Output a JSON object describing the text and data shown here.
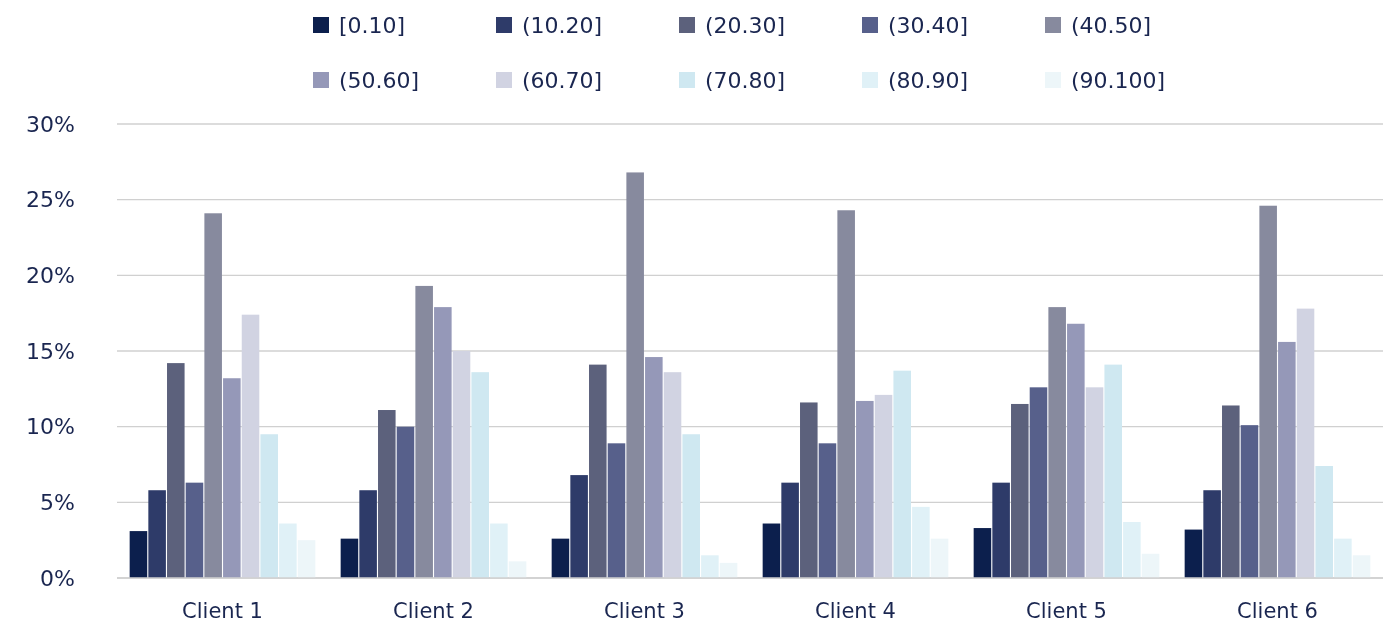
{
  "chart_data": {
    "type": "bar",
    "categories": [
      "Client 1",
      "Client 2",
      "Client 3",
      "Client 4",
      "Client 5",
      "Client 6"
    ],
    "series": [
      {
        "name": "[0.10]",
        "color": "#0c1f4d",
        "values": [
          3.1,
          2.6,
          2.6,
          3.6,
          3.3,
          3.2
        ]
      },
      {
        "name": "(10.20]",
        "color": "#2e3b69",
        "values": [
          5.8,
          5.8,
          6.8,
          6.3,
          6.3,
          5.8
        ]
      },
      {
        "name": "(20.30]",
        "color": "#5c617c",
        "values": [
          14.2,
          11.1,
          14.1,
          11.6,
          11.5,
          11.4
        ]
      },
      {
        "name": "(30.40]",
        "color": "#57608b",
        "values": [
          6.3,
          10.0,
          8.9,
          8.9,
          12.6,
          10.1
        ]
      },
      {
        "name": "(40.50]",
        "color": "#878a9e",
        "values": [
          24.1,
          19.3,
          26.8,
          24.3,
          17.9,
          24.6
        ]
      },
      {
        "name": "(50.60]",
        "color": "#9598b8",
        "values": [
          13.2,
          17.9,
          14.6,
          11.7,
          16.8,
          15.6
        ]
      },
      {
        "name": "(60.70]",
        "color": "#d1d3e2",
        "values": [
          17.4,
          15.0,
          13.6,
          12.1,
          12.6,
          17.8
        ]
      },
      {
        "name": "(70.80]",
        "color": "#cfe8f1",
        "values": [
          9.5,
          13.6,
          9.5,
          13.7,
          14.1,
          7.4
        ]
      },
      {
        "name": "(80.90]",
        "color": "#e0f1f7",
        "values": [
          3.6,
          3.6,
          1.5,
          4.7,
          3.7,
          2.6
        ]
      },
      {
        "name": "(90.100]",
        "color": "#edf6f9",
        "values": [
          2.5,
          1.1,
          1.0,
          2.6,
          1.6,
          1.5
        ]
      }
    ],
    "ylim": [
      0,
      30
    ],
    "yticks": [
      {
        "value": 0,
        "label": "0%"
      },
      {
        "value": 5,
        "label": "5%"
      },
      {
        "value": 10,
        "label": "10%"
      },
      {
        "value": 15,
        "label": "15%"
      },
      {
        "value": 20,
        "label": "20%"
      },
      {
        "value": 25,
        "label": "25%"
      },
      {
        "value": 30,
        "label": "30%"
      }
    ],
    "grid": "y",
    "legend": "top"
  }
}
